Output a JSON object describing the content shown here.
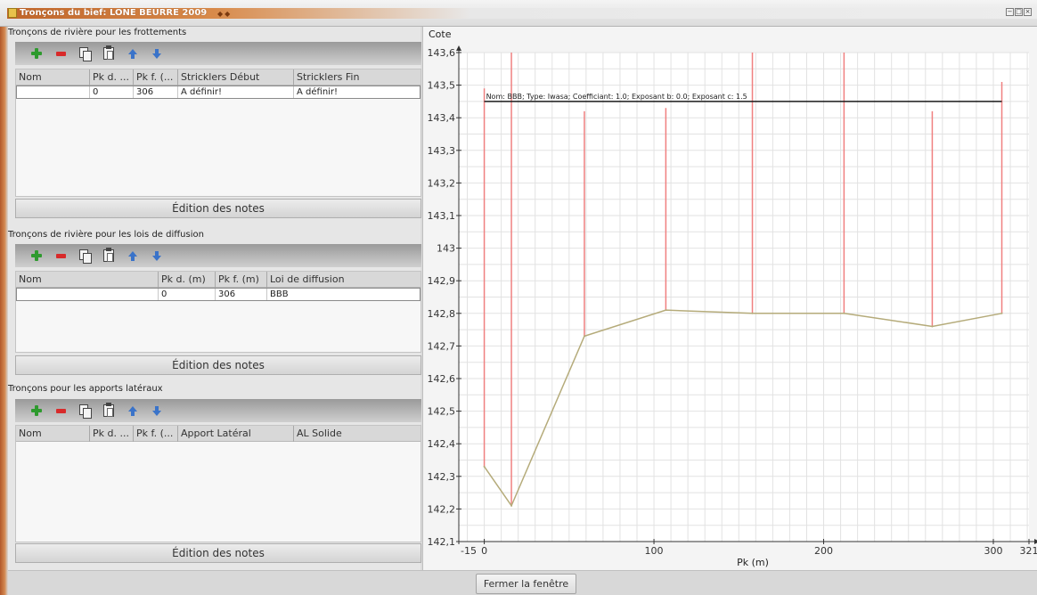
{
  "window": {
    "title": "Tronçons du bief: LONE BEURRE 2009",
    "controls": [
      "−",
      "□",
      "×"
    ]
  },
  "colors": {
    "title_bar_accent": "#c0652a",
    "chart_vertical_lines": "#f08080",
    "chart_profile_line": "#b5ab7a",
    "annotation_line": "#1a1a1a",
    "add_icon": "#2e9a2e",
    "remove_icon": "#d82a2a",
    "move_icon": "#3a73c9"
  },
  "toolbar_icons": [
    "plus-icon",
    "minus-icon",
    "copy-icon",
    "paste-icon",
    "arrow-up-icon",
    "arrow-down-icon"
  ],
  "friction_section": {
    "title": "Tronçons de rivière pour les frottements",
    "columns": [
      "Nom",
      "Pk d. ...",
      "Pk f. (...",
      "Stricklers Début",
      "Stricklers Fin"
    ],
    "rows": [
      {
        "cells": [
          "",
          "0",
          "306",
          "A définir!",
          "A définir!"
        ]
      }
    ],
    "notes_button": "Édition des notes"
  },
  "diffusion_section": {
    "title": "Tronçons de rivière pour les lois de diffusion",
    "columns": [
      "Nom",
      "Pk d. (m)",
      "Pk f. (m)",
      "Loi de diffusion"
    ],
    "rows": [
      {
        "cells": [
          "",
          "0",
          "306",
          "BBB"
        ]
      }
    ],
    "notes_button": "Édition des notes"
  },
  "lateral_section": {
    "title": "Tronçons pour les apports latéraux",
    "columns": [
      "Nom",
      "Pk d. ...",
      "Pk f. (...",
      "Apport Latéral",
      "AL Solide"
    ],
    "rows": [],
    "notes_button": "Édition des notes"
  },
  "chart": {
    "y_axis_title": "Cote",
    "x_axis_title": "Pk (m)",
    "annotation": "Nom: BBB;  Type: Iwasa;  Coefficiant: 1.0;  Exposant b: 0.0;  Exposant c: 1.5"
  },
  "chart_data": {
    "type": "line",
    "xlabel": "Pk (m)",
    "ylabel": "Cote",
    "xlim": [
      -15,
      321
    ],
    "ylim": [
      142.1,
      143.6
    ],
    "x_tick_labels": [
      "-15",
      "0",
      "100",
      "200",
      "300",
      "321"
    ],
    "x_ticks": [
      -15,
      0,
      100,
      200,
      300,
      321
    ],
    "y_tick_labels": [
      "142,1",
      "142,2",
      "142,3",
      "142,4",
      "142,5",
      "142,6",
      "142,7",
      "142,8",
      "142,9",
      "143",
      "143,1",
      "143,2",
      "143,3",
      "143,4",
      "143,5",
      "143,6"
    ],
    "y_ticks": [
      142.1,
      142.2,
      142.3,
      142.4,
      142.5,
      142.6,
      142.7,
      142.8,
      142.9,
      143.0,
      143.1,
      143.2,
      143.3,
      143.4,
      143.5,
      143.6
    ],
    "grid": true,
    "profile": [
      {
        "x": 0,
        "y": 142.33
      },
      {
        "x": 16,
        "y": 142.21
      },
      {
        "x": 59,
        "y": 142.73
      },
      {
        "x": 107,
        "y": 142.81
      },
      {
        "x": 158,
        "y": 142.8
      },
      {
        "x": 212,
        "y": 142.8
      },
      {
        "x": 264,
        "y": 142.76
      },
      {
        "x": 305,
        "y": 142.8
      }
    ],
    "vertical_segments": [
      {
        "x": 0,
        "y_top": 143.49
      },
      {
        "x": 16,
        "y_top": 143.6
      },
      {
        "x": 59,
        "y_top": 143.42
      },
      {
        "x": 107,
        "y_top": 143.43
      },
      {
        "x": 158,
        "y_top": 143.6
      },
      {
        "x": 212,
        "y_top": 143.6
      },
      {
        "x": 264,
        "y_top": 143.42
      },
      {
        "x": 305,
        "y_top": 143.51
      }
    ],
    "horizontal_line": {
      "y": 143.45,
      "x_start": 0,
      "x_end": 305
    }
  },
  "footer": {
    "close_button": "Fermer la fenêtre"
  }
}
